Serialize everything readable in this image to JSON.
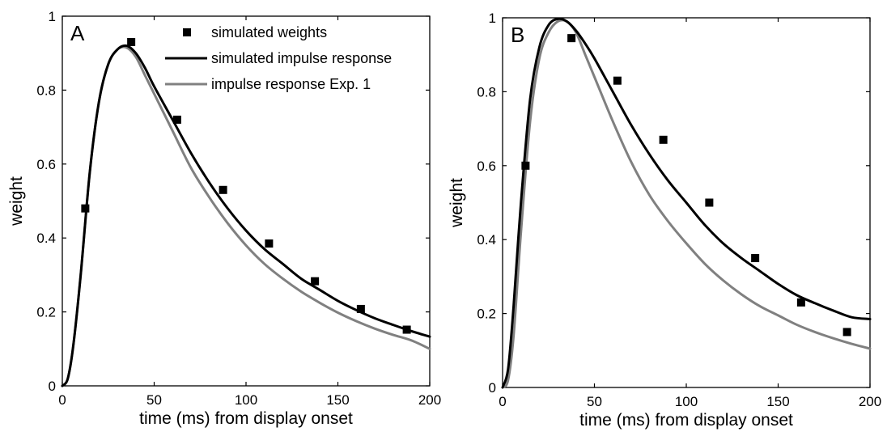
{
  "chart_data": [
    {
      "type": "line",
      "panel_label": "A",
      "xlabel": "time (ms) from display onset",
      "ylabel": "weight",
      "xlim": [
        0,
        200
      ],
      "ylim": [
        0,
        1
      ],
      "xticks": [
        0,
        50,
        100,
        150,
        200
      ],
      "yticks": [
        0,
        0.2,
        0.4,
        0.6,
        0.8,
        1
      ],
      "ytick_labels": [
        "0",
        "0.2",
        "0.4",
        "0.6",
        "0.8",
        "1"
      ],
      "grid": false,
      "legend_position": "top-right",
      "series": [
        {
          "name": "simulated weights",
          "kind": "scatter",
          "color": "#000000",
          "x": [
            12.5,
            37.5,
            62.5,
            87.5,
            112.5,
            137.5,
            162.5,
            187.5
          ],
          "y": [
            0.48,
            0.93,
            0.72,
            0.53,
            0.385,
            0.283,
            0.208,
            0.152
          ]
        },
        {
          "name": "simulated impulse response",
          "kind": "line",
          "color": "#000000",
          "x": [
            0,
            3,
            6,
            10,
            15,
            20,
            25,
            30,
            35,
            40,
            45,
            50,
            60,
            70,
            80,
            90,
            100,
            110,
            120,
            130,
            140,
            150,
            160,
            170,
            180,
            190,
            200
          ],
          "y": [
            0,
            0.02,
            0.11,
            0.3,
            0.58,
            0.77,
            0.87,
            0.91,
            0.92,
            0.9,
            0.86,
            0.81,
            0.72,
            0.63,
            0.55,
            0.48,
            0.42,
            0.37,
            0.33,
            0.29,
            0.26,
            0.23,
            0.205,
            0.183,
            0.165,
            0.148,
            0.133
          ]
        },
        {
          "name": "impulse response Exp. 1",
          "kind": "line",
          "color": "#808080",
          "x": [
            0,
            3,
            6,
            10,
            15,
            20,
            25,
            30,
            35,
            40,
            45,
            50,
            60,
            70,
            80,
            90,
            100,
            110,
            120,
            130,
            140,
            150,
            160,
            170,
            180,
            190,
            200
          ],
          "y": [
            0,
            0.02,
            0.11,
            0.3,
            0.58,
            0.77,
            0.87,
            0.91,
            0.915,
            0.89,
            0.84,
            0.79,
            0.69,
            0.59,
            0.51,
            0.44,
            0.38,
            0.33,
            0.29,
            0.255,
            0.225,
            0.198,
            0.175,
            0.155,
            0.138,
            0.123,
            0.1
          ]
        }
      ]
    },
    {
      "type": "line",
      "panel_label": "B",
      "xlabel": "time (ms) from display onset",
      "ylabel": "weight",
      "xlim": [
        0,
        200
      ],
      "ylim": [
        0,
        1
      ],
      "xticks": [
        0,
        50,
        100,
        150,
        200
      ],
      "yticks": [
        0,
        0.2,
        0.4,
        0.6,
        0.8,
        1
      ],
      "ytick_labels": [
        "0",
        "0.2",
        "0.4",
        "0.6",
        "0.8",
        "1"
      ],
      "grid": false,
      "series": [
        {
          "name": "simulated weights",
          "kind": "scatter",
          "color": "#000000",
          "x": [
            12.5,
            37.5,
            62.5,
            87.5,
            112.5,
            137.5,
            162.5,
            187.5
          ],
          "y": [
            0.6,
            0.945,
            0.83,
            0.67,
            0.5,
            0.35,
            0.23,
            0.15
          ]
        },
        {
          "name": "simulated impulse response",
          "kind": "line",
          "color": "#000000",
          "x": [
            0,
            3,
            6,
            10,
            15,
            20,
            25,
            30,
            35,
            40,
            45,
            50,
            60,
            70,
            80,
            90,
            100,
            110,
            120,
            130,
            140,
            150,
            160,
            170,
            180,
            190,
            200
          ],
          "y": [
            0,
            0.05,
            0.22,
            0.5,
            0.78,
            0.92,
            0.98,
            0.997,
            0.99,
            0.965,
            0.93,
            0.89,
            0.8,
            0.71,
            0.63,
            0.56,
            0.5,
            0.44,
            0.39,
            0.35,
            0.315,
            0.28,
            0.25,
            0.228,
            0.208,
            0.19,
            0.185
          ]
        },
        {
          "name": "impulse response Exp. 1",
          "kind": "line",
          "color": "#808080",
          "x": [
            0,
            3,
            6,
            10,
            15,
            20,
            25,
            30,
            35,
            40,
            45,
            50,
            60,
            70,
            80,
            90,
            100,
            110,
            120,
            130,
            140,
            150,
            160,
            170,
            180,
            190,
            200
          ],
          "y": [
            0,
            0.02,
            0.14,
            0.42,
            0.72,
            0.89,
            0.96,
            0.99,
            0.99,
            0.96,
            0.9,
            0.84,
            0.72,
            0.61,
            0.52,
            0.45,
            0.39,
            0.335,
            0.29,
            0.252,
            0.22,
            0.195,
            0.17,
            0.15,
            0.133,
            0.118,
            0.105
          ]
        }
      ]
    }
  ]
}
